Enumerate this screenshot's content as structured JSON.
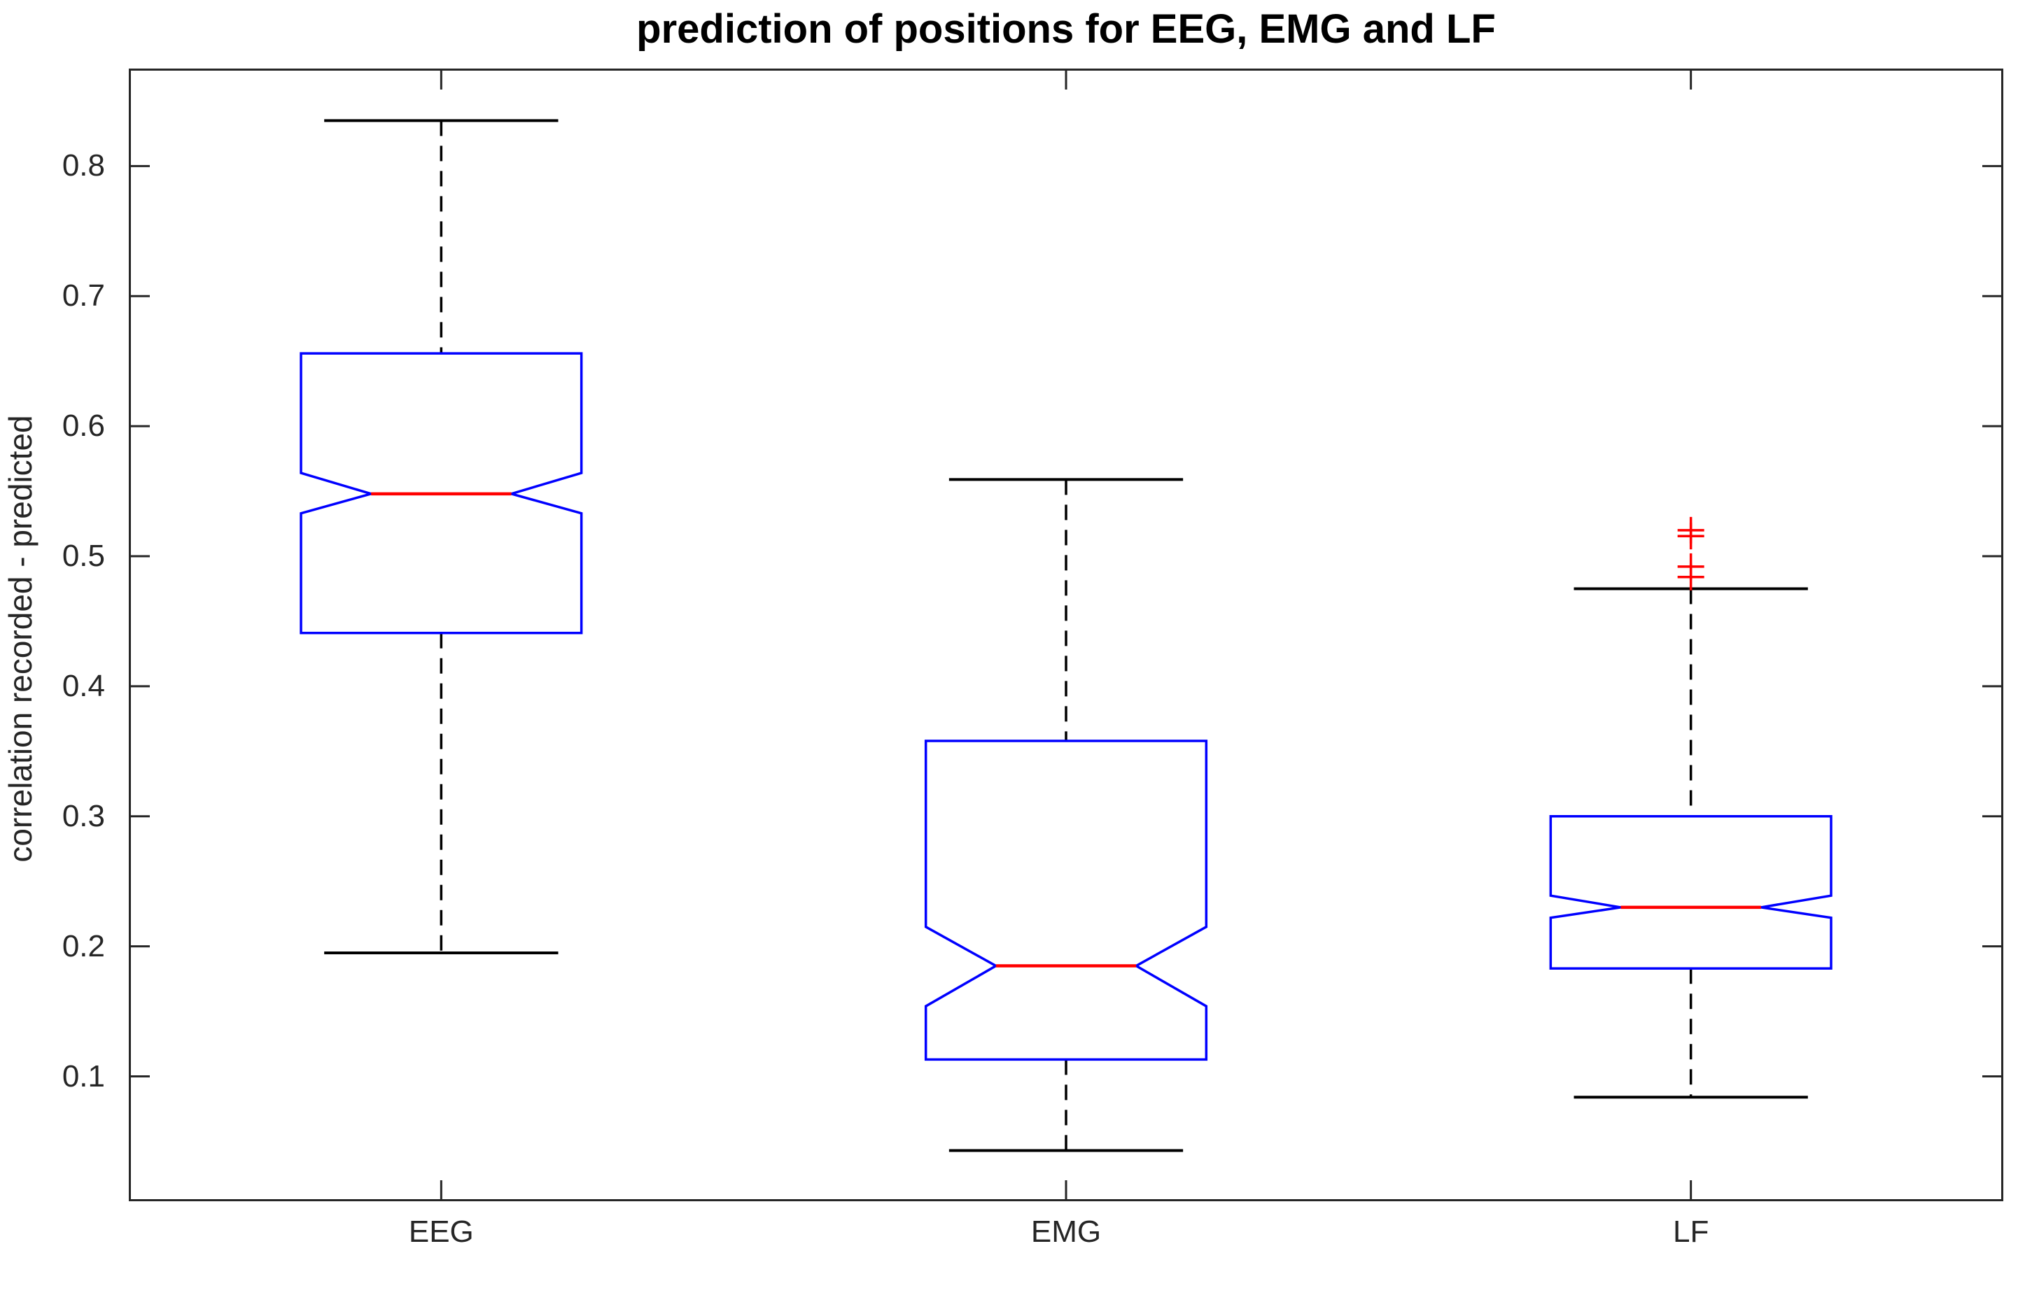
{
  "chart_data": {
    "type": "boxplot",
    "notched": true,
    "title": "prediction of positions for EEG, EMG and LF",
    "xlabel": "",
    "ylabel": "correlation recorded - predicted",
    "categories": [
      "EEG",
      "EMG",
      "LF"
    ],
    "y_ticks": [
      0.1,
      0.2,
      0.3,
      0.4,
      0.5,
      0.6,
      0.7,
      0.8
    ],
    "ylim": [
      0.004,
      0.875
    ],
    "xlim": [
      0.5,
      3.5
    ],
    "grid": false,
    "legend": "none",
    "colors": {
      "box": "#0000ff",
      "median": "#ff0000",
      "outlier": "#ff0000",
      "whisker": "#000000",
      "axis": "#262626",
      "background": "#ffffff"
    },
    "series": [
      {
        "name": "EEG",
        "position": 1,
        "whisker_low": 0.195,
        "q1": 0.441,
        "median": 0.548,
        "q3": 0.656,
        "whisker_high": 0.835,
        "notch_low": 0.533,
        "notch_high": 0.564,
        "outliers": []
      },
      {
        "name": "EMG",
        "position": 2,
        "whisker_low": 0.043,
        "q1": 0.113,
        "median": 0.185,
        "q3": 0.358,
        "whisker_high": 0.559,
        "notch_low": 0.154,
        "notch_high": 0.215,
        "outliers": []
      },
      {
        "name": "LF",
        "position": 3,
        "whisker_low": 0.084,
        "q1": 0.183,
        "median": 0.23,
        "q3": 0.3,
        "whisker_high": 0.475,
        "notch_low": 0.222,
        "notch_high": 0.239,
        "outliers": [
          0.52,
          0.5155,
          0.492,
          0.484
        ]
      }
    ]
  }
}
